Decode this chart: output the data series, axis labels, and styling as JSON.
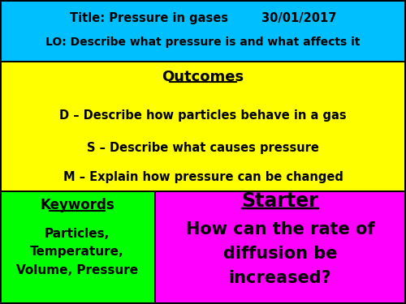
{
  "title_line1": "Title: Pressure in gases        30/01/2017",
  "title_line2": "LO: Describe what pressure is and what affects it",
  "header_bg": "#00BFFF",
  "outcomes_title": "Outcomes",
  "outcome_D": "D – Describe how particles behave in a gas",
  "outcome_S": "S – Describe what causes pressure",
  "outcome_M": "M – Explain how pressure can be changed",
  "outcomes_bg": "#FFFF00",
  "keywords_title": "Keywords",
  "keywords_body": "Particles,\nTemperature,\nVolume, Pressure",
  "keywords_bg": "#00FF00",
  "starter_title": "Starter",
  "starter_body": "How can the rate of\ndiffusion be\nincreased?",
  "starter_bg": "#FF00FF",
  "text_color": "#000000",
  "border_color": "#000000",
  "fig_width": 5.0,
  "fig_height": 3.75,
  "dpi": 100
}
